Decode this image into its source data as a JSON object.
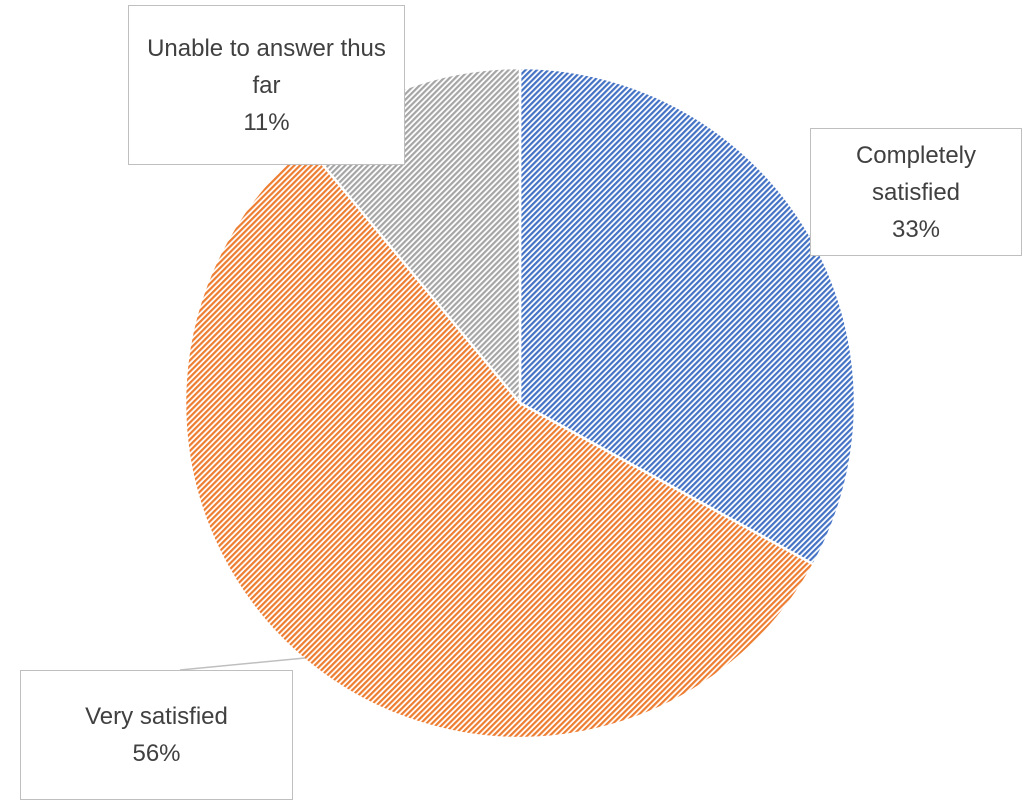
{
  "chart_data": {
    "type": "pie",
    "categories": [
      "Completely satisfied",
      "Very satisfied",
      "Unable to answer thus far"
    ],
    "values": [
      33,
      56,
      11
    ],
    "value_labels": [
      "33%",
      "56%",
      "11%"
    ],
    "colors": [
      "#4472c4",
      "#ed7d31",
      "#a5a5a5"
    ]
  }
}
